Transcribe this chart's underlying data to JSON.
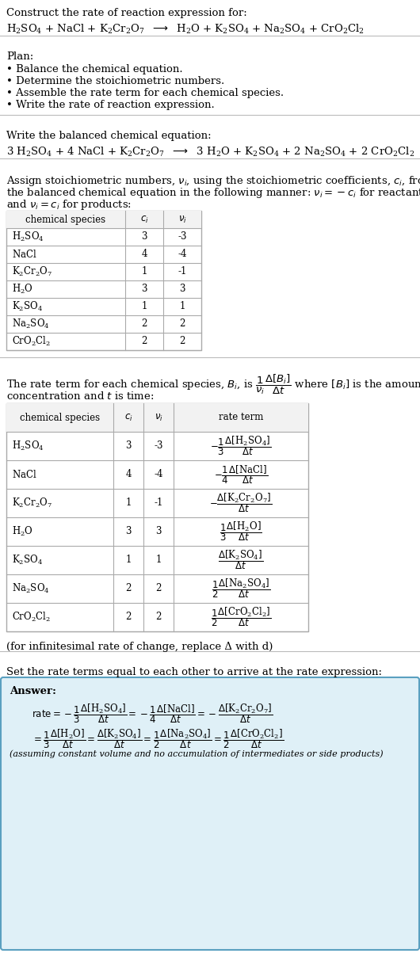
{
  "title_line1": "Construct the rate of reaction expression for:",
  "plan_header": "Plan:",
  "plan_items": [
    "• Balance the chemical equation.",
    "• Determine the stoichiometric numbers.",
    "• Assemble the rate term for each chemical species.",
    "• Write the rate of reaction expression."
  ],
  "balanced_header": "Write the balanced chemical equation:",
  "stoich_intro1": "Assign stoichiometric numbers, ",
  "stoich_intro2": ", using the stoichiometric coefficients, ",
  "stoich_intro3": ", from",
  "stoich_intro4": "the balanced chemical equation in the following manner: ",
  "stoich_intro5": " for reactants",
  "stoich_intro6": "and ",
  "stoich_intro7": " for products:",
  "table1_col_headers": [
    "chemical species",
    "c_i",
    "v_i"
  ],
  "table1_rows": [
    [
      "H_2SO_4",
      "3",
      "-3"
    ],
    [
      "NaCl",
      "4",
      "-4"
    ],
    [
      "K_2Cr_2O_7",
      "1",
      "-1"
    ],
    [
      "H_2O",
      "3",
      "3"
    ],
    [
      "K_2SO_4",
      "1",
      "1"
    ],
    [
      "Na_2SO_4",
      "2",
      "2"
    ],
    [
      "CrO_2Cl_2",
      "2",
      "2"
    ]
  ],
  "rate_text1a": "The rate term for each chemical species, B",
  "rate_text1b": ", is ",
  "rate_text1c": " where [B",
  "rate_text1d": "] is the amount",
  "rate_text2": "concentration and ",
  "rate_text2b": " is time:",
  "table2_col_headers": [
    "chemical species",
    "c_i",
    "v_i",
    "rate term"
  ],
  "table2_rows": [
    [
      "H_2SO_4",
      "3",
      "-3"
    ],
    [
      "NaCl",
      "4",
      "-4"
    ],
    [
      "K_2Cr_2O_7",
      "1",
      "-1"
    ],
    [
      "H_2O",
      "3",
      "3"
    ],
    [
      "K_2SO_4",
      "1",
      "1"
    ],
    [
      "Na_2SO_4",
      "2",
      "2"
    ],
    [
      "CrO_2Cl_2",
      "2",
      "2"
    ]
  ],
  "infinitesimal_note": "(for infinitesimal rate of change, replace Δ with d)",
  "set_equal_text": "Set the rate terms equal to each other to arrive at the rate expression:",
  "answer_label": "Answer:",
  "answer_note": "(assuming constant volume and no accumulation of intermediates or side products)",
  "bg_color": "#ffffff",
  "text_color": "#000000",
  "table_border_color": "#aaaaaa",
  "answer_box_color": "#dff0f7",
  "answer_box_border": "#5aa0c0"
}
